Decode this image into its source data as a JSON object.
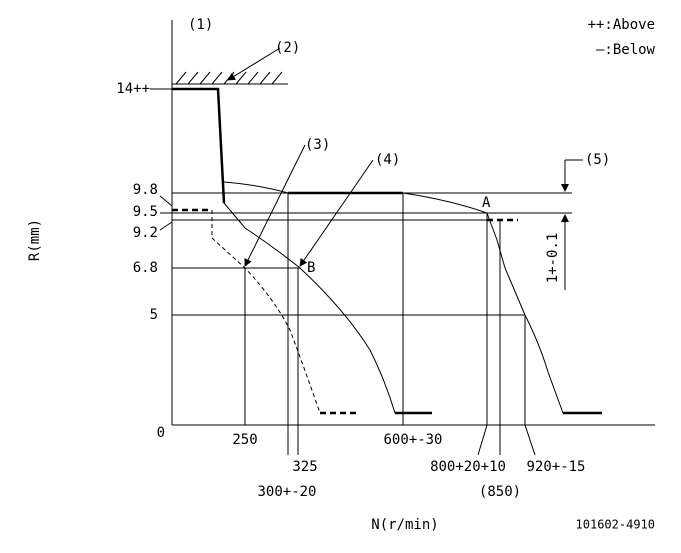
{
  "labels": {
    "ref1": "(1)",
    "ref2": "(2)",
    "ref3": "(3)",
    "ref4": "(4)",
    "ref5": "(5)",
    "point_a": "A",
    "point_b": "B"
  },
  "legend": {
    "above": "++:Above",
    "below": "—:Below"
  },
  "y_axis": {
    "title": "R(mm)",
    "ticks": [
      "14++",
      "9.8",
      "9.5",
      "9.2",
      "6.8",
      "5",
      "0"
    ]
  },
  "x_axis": {
    "title": "N(r/min)",
    "ticks": [
      "250",
      "325",
      "300+-20",
      "600+-30",
      "800+20+10",
      "(850)",
      "920+-15"
    ]
  },
  "tolerance": "1+-0.1",
  "code": "101602-4910"
}
